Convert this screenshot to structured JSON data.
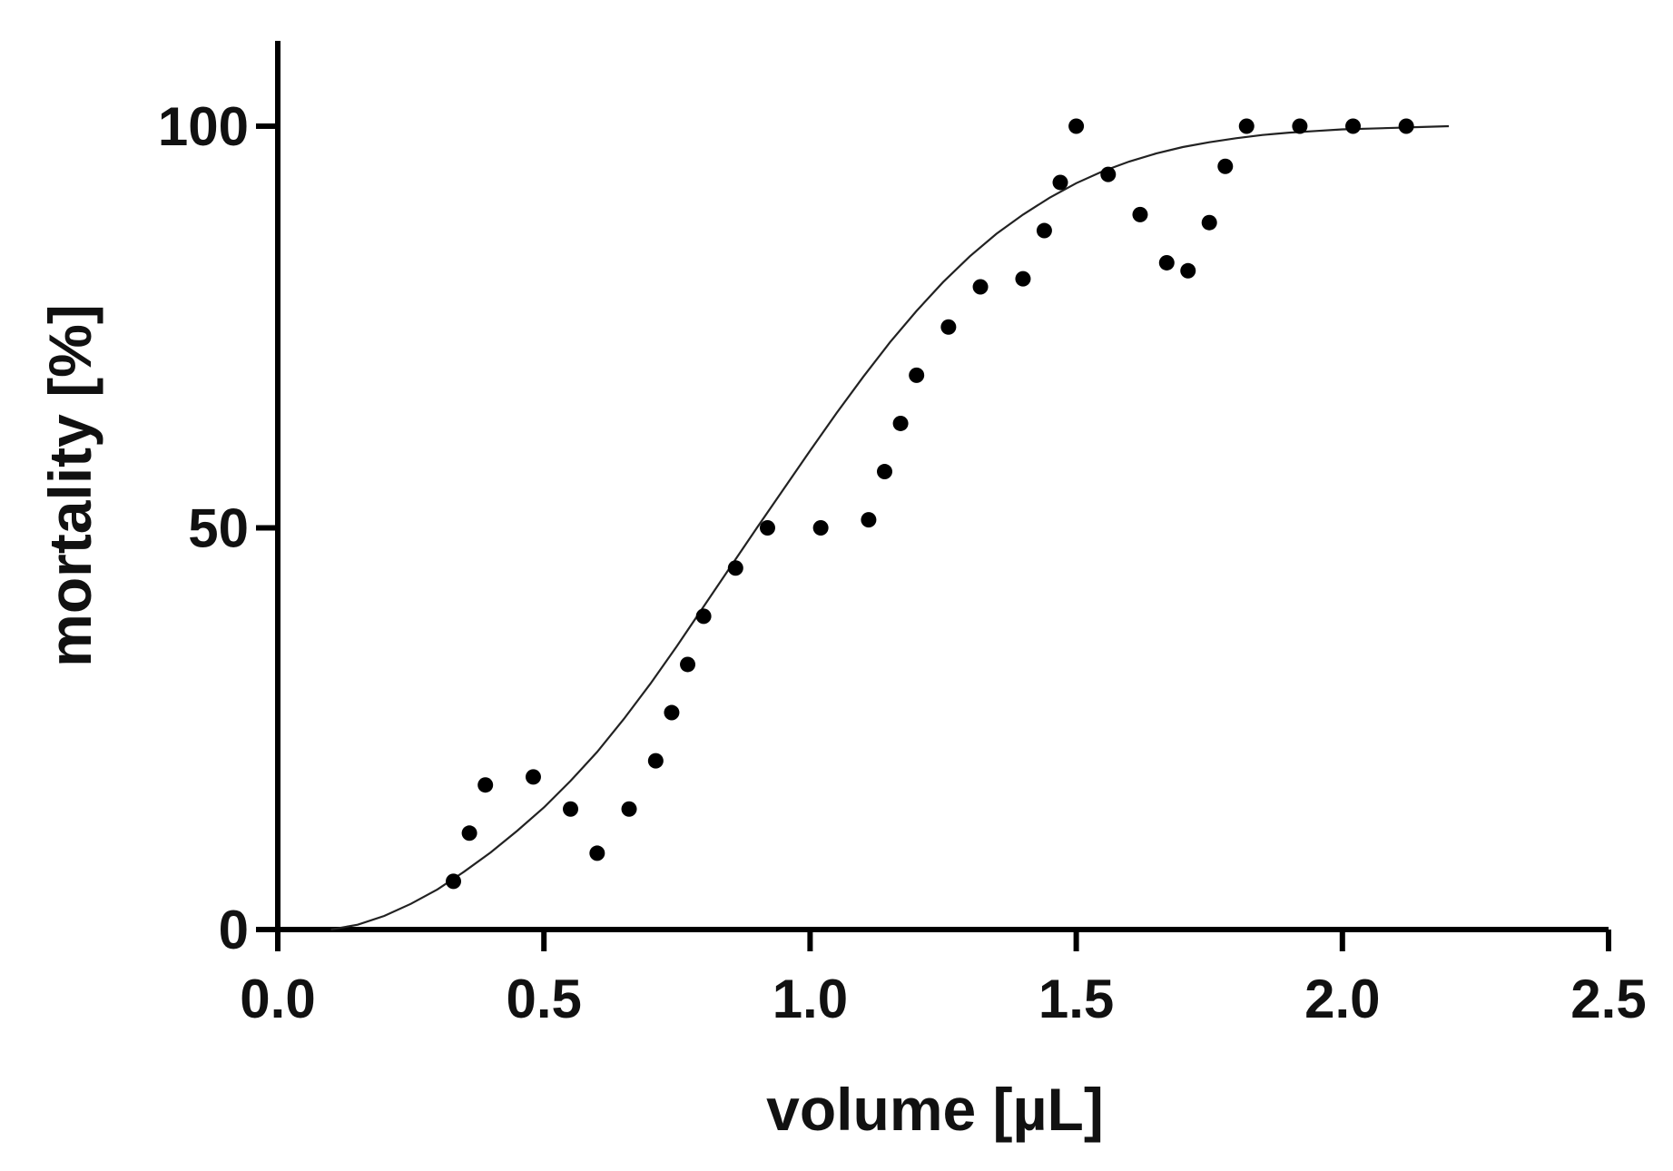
{
  "chart_data": {
    "type": "scatter",
    "xlabel": "volume [µL]",
    "ylabel": "mortality [%]",
    "xlim": [
      0,
      2.5
    ],
    "ylim": [
      0,
      110
    ],
    "x_ticks": [
      0.0,
      0.5,
      1.0,
      1.5,
      2.0,
      2.5
    ],
    "x_tick_labels": [
      "0.0",
      "0.5",
      "1.0",
      "1.5",
      "2.0",
      "2.5"
    ],
    "y_ticks": [
      0,
      50,
      100
    ],
    "y_tick_labels": [
      "0",
      "50",
      "100"
    ],
    "grid": false,
    "legend": "none",
    "points": [
      {
        "x": 0.33,
        "y": 6
      },
      {
        "x": 0.36,
        "y": 12
      },
      {
        "x": 0.39,
        "y": 18
      },
      {
        "x": 0.48,
        "y": 19
      },
      {
        "x": 0.55,
        "y": 15
      },
      {
        "x": 0.6,
        "y": 9.5
      },
      {
        "x": 0.66,
        "y": 15
      },
      {
        "x": 0.71,
        "y": 21
      },
      {
        "x": 0.74,
        "y": 27
      },
      {
        "x": 0.77,
        "y": 33
      },
      {
        "x": 0.8,
        "y": 39
      },
      {
        "x": 0.86,
        "y": 45
      },
      {
        "x": 0.92,
        "y": 50
      },
      {
        "x": 1.02,
        "y": 50
      },
      {
        "x": 1.11,
        "y": 51
      },
      {
        "x": 1.14,
        "y": 57
      },
      {
        "x": 1.17,
        "y": 63
      },
      {
        "x": 1.2,
        "y": 69
      },
      {
        "x": 1.26,
        "y": 75
      },
      {
        "x": 1.32,
        "y": 80
      },
      {
        "x": 1.4,
        "y": 81
      },
      {
        "x": 1.44,
        "y": 87
      },
      {
        "x": 1.47,
        "y": 93
      },
      {
        "x": 1.5,
        "y": 100
      },
      {
        "x": 1.56,
        "y": 94
      },
      {
        "x": 1.62,
        "y": 89
      },
      {
        "x": 1.67,
        "y": 83
      },
      {
        "x": 1.71,
        "y": 82
      },
      {
        "x": 1.75,
        "y": 88
      },
      {
        "x": 1.78,
        "y": 95
      },
      {
        "x": 1.82,
        "y": 100
      },
      {
        "x": 1.92,
        "y": 100
      },
      {
        "x": 2.02,
        "y": 100
      },
      {
        "x": 2.12,
        "y": 100
      }
    ],
    "fit_curve": {
      "x": [
        0.1,
        0.15,
        0.2,
        0.25,
        0.3,
        0.35,
        0.4,
        0.45,
        0.5,
        0.55,
        0.6,
        0.65,
        0.7,
        0.75,
        0.8,
        0.85,
        0.9,
        0.95,
        1.0,
        1.05,
        1.1,
        1.15,
        1.2,
        1.25,
        1.3,
        1.35,
        1.4,
        1.45,
        1.5,
        1.55,
        1.6,
        1.65,
        1.7,
        1.75,
        1.8,
        1.85,
        1.9,
        1.95,
        2.0,
        2.05,
        2.1,
        2.15,
        2.2
      ],
      "y": [
        0.0,
        0.6,
        1.7,
        3.2,
        5.0,
        7.2,
        9.6,
        12.3,
        15.2,
        18.5,
        22.1,
        26.2,
        30.6,
        35.3,
        40.2,
        45.1,
        50.0,
        54.8,
        59.6,
        64.3,
        68.8,
        73.1,
        77.0,
        80.6,
        83.8,
        86.6,
        89.0,
        91.1,
        92.9,
        94.4,
        95.6,
        96.6,
        97.4,
        98.0,
        98.5,
        98.9,
        99.2,
        99.4,
        99.6,
        99.7,
        99.8,
        99.9,
        100.0
      ]
    }
  }
}
